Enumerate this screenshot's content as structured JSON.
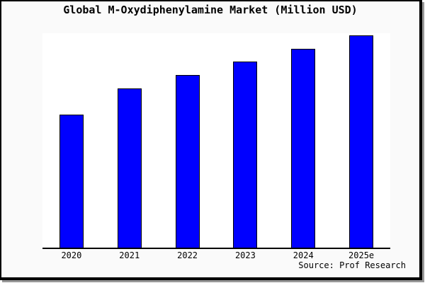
{
  "window": {
    "title": "Global M-Oxydiphenylamine Market (Million USD)",
    "source_credit": "Source: Prof Research"
  },
  "chart_data": {
    "type": "bar",
    "title": "Global M-Oxydiphenylamine Market (Million USD)",
    "categories": [
      "2020",
      "2021",
      "2022",
      "2023",
      "2024",
      "2025e"
    ],
    "values": [
      62.7,
      75.0,
      81.3,
      87.7,
      93.7,
      100.0
    ],
    "ylim": [
      0,
      101
    ],
    "xlabel": "",
    "ylabel": "",
    "grid": false,
    "legend": false,
    "annotation": "Source: Prof Research",
    "colors": {
      "bar_fill": "#0000ff",
      "bar_border": "#000000",
      "plot_background": "#ffffff",
      "canvas_background": "#fafafa",
      "frame_border": "#000000",
      "frame_shadow": "#979797",
      "text": "#000000"
    }
  }
}
